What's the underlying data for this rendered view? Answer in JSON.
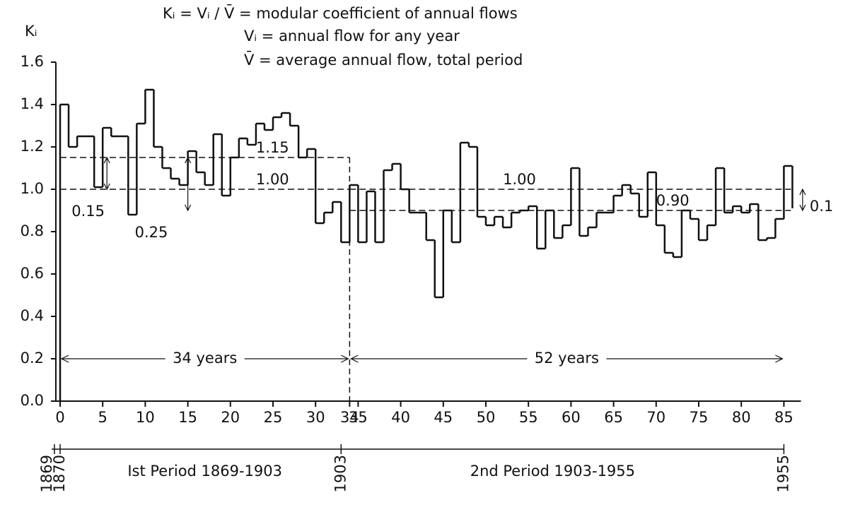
{
  "chart_data": {
    "type": "step",
    "header": [
      "Kᵢ = Vᵢ / V̄ = modular coefficient of annual flows",
      "Vᵢ = annual flow for any year",
      "V̄ = average annual flow, total period"
    ],
    "y_label": "Kᵢ",
    "color": "#111111",
    "x": [
      0,
      1,
      2,
      3,
      4,
      5,
      6,
      7,
      8,
      9,
      10,
      11,
      12,
      13,
      14,
      15,
      16,
      17,
      18,
      19,
      20,
      21,
      22,
      23,
      24,
      25,
      26,
      27,
      28,
      29,
      30,
      31,
      32,
      33,
      34,
      35,
      36,
      37,
      38,
      39,
      40,
      41,
      42,
      43,
      44,
      45,
      46,
      47,
      48,
      49,
      50,
      51,
      52,
      53,
      54,
      55,
      56,
      57,
      58,
      59,
      60,
      61,
      62,
      63,
      64,
      65,
      66,
      67,
      68,
      69,
      70,
      71,
      72,
      73,
      74,
      75,
      76,
      77,
      78,
      79,
      80,
      81,
      82,
      83,
      84,
      85
    ],
    "values": [
      1.4,
      1.2,
      1.25,
      1.25,
      1.01,
      1.29,
      1.25,
      1.25,
      0.88,
      1.31,
      1.47,
      1.2,
      1.1,
      1.05,
      1.02,
      1.18,
      1.08,
      1.02,
      1.26,
      0.97,
      1.15,
      1.24,
      1.21,
      1.31,
      1.28,
      1.34,
      1.36,
      1.3,
      1.15,
      1.19,
      0.84,
      0.89,
      0.94,
      0.75,
      1.02,
      0.75,
      0.99,
      0.75,
      1.09,
      1.12,
      1.0,
      0.89,
      0.89,
      0.76,
      0.49,
      0.9,
      0.75,
      1.22,
      1.2,
      0.87,
      0.83,
      0.87,
      0.82,
      0.89,
      0.9,
      0.92,
      0.72,
      0.9,
      0.77,
      0.83,
      1.1,
      0.78,
      0.82,
      0.89,
      0.89,
      0.97,
      1.02,
      0.98,
      0.87,
      1.08,
      0.83,
      0.7,
      0.68,
      0.9,
      0.86,
      0.76,
      0.83,
      1.1,
      0.89,
      0.92,
      0.89,
      0.93,
      0.76,
      0.77,
      0.86,
      1.11
    ],
    "xlim": [
      -0.5,
      87
    ],
    "ylim": [
      0,
      1.6
    ],
    "xticks": [
      0,
      5,
      10,
      15,
      20,
      25,
      30,
      34,
      35,
      40,
      45,
      50,
      55,
      60,
      65,
      70,
      75,
      80,
      85
    ],
    "yticks": [
      {
        "value": 0,
        "label": "0.0"
      },
      0.2,
      0.4,
      0.6,
      0.8,
      {
        "value": 1,
        "label": "1.0"
      },
      1.2,
      1.4,
      1.6
    ],
    "periods": [
      {
        "name": "Ist Period 1869-1903",
        "start": 0,
        "end": 34,
        "span_label": "34 years",
        "means": [
          1.15,
          {
            "value": 1.0,
            "label": "1.00"
          }
        ]
      },
      {
        "name": "2nd Period 1903-1955",
        "start": 34,
        "end": 85,
        "span_label": "52 years",
        "means": [
          {
            "value": 1.0,
            "label": "1.00"
          },
          {
            "value": 0.9,
            "label": "0.90"
          }
        ]
      }
    ],
    "differences": [
      {
        "value": 0.15,
        "top": 1.15
      },
      {
        "value": 0.25,
        "top": 1.15
      },
      {
        "value": 0.1,
        "top": 1.0
      }
    ],
    "years": [
      1869,
      1870,
      1903,
      1955
    ]
  }
}
